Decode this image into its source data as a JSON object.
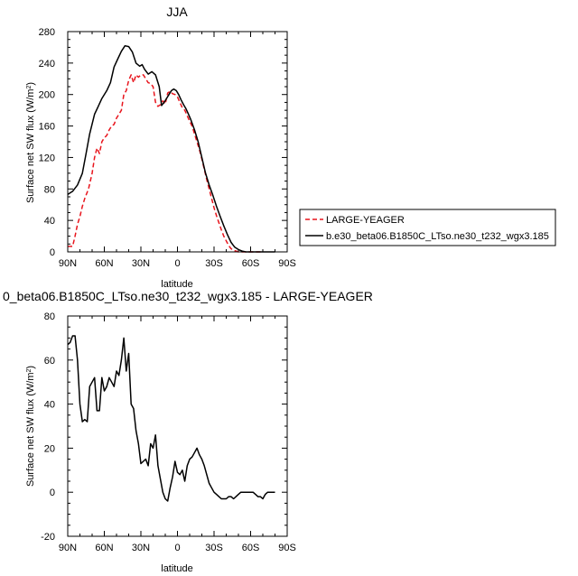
{
  "chart_data": [
    {
      "type": "line",
      "title": "JJA",
      "xlabel": "latitude",
      "ylabel": "Surface net SW flux (W/m²)",
      "xlim": [
        -90,
        90
      ],
      "ylim": [
        0,
        280
      ],
      "x_ticks": [
        -90,
        -60,
        -30,
        0,
        30,
        60,
        90
      ],
      "x_tick_labels": [
        "90N",
        "60N",
        "30N",
        "0",
        "30S",
        "60S",
        "90S"
      ],
      "y_ticks": [
        0,
        40,
        80,
        120,
        160,
        200,
        240,
        280
      ],
      "x_direction": "90N on the left, 90S on the right",
      "legend_position": "right of the plot",
      "series": [
        {
          "name": "LARGE-YEAGER",
          "color": "#e8141c",
          "dash": "dashed",
          "x": [
            -90,
            -86,
            -84,
            -82,
            -80,
            -78,
            -76,
            -73,
            -70,
            -68,
            -66,
            -64,
            -62,
            -60,
            -58,
            -56,
            -54,
            -52,
            -50,
            -48,
            -46,
            -44,
            -42,
            -40,
            -38,
            -36,
            -34,
            -32,
            -30,
            -28,
            -26,
            -24,
            -22,
            -20,
            -18,
            -16,
            -14,
            -12,
            -10,
            -8,
            -6,
            -4,
            -2,
            0,
            2,
            4,
            6,
            8,
            10,
            12,
            14,
            16,
            18,
            20,
            22,
            24,
            26,
            28,
            30,
            32,
            34,
            36,
            38,
            40,
            42,
            44,
            46,
            48,
            50,
            52,
            54,
            56,
            58,
            60,
            62,
            64,
            66,
            68,
            70
          ],
          "values": [
            7,
            7,
            20,
            35,
            45,
            58,
            68,
            80,
            100,
            120,
            132,
            125,
            140,
            145,
            148,
            155,
            160,
            162,
            170,
            175,
            180,
            200,
            205,
            218,
            225,
            215,
            225,
            222,
            225,
            225,
            220,
            215,
            214,
            210,
            190,
            185,
            187,
            192,
            188,
            202,
            204,
            201,
            200,
            197,
            190,
            183,
            180,
            173,
            166,
            160,
            150,
            140,
            130,
            118,
            105,
            92,
            80,
            68,
            56,
            46,
            37,
            28,
            20,
            14,
            8,
            4,
            2,
            1,
            0,
            0,
            0,
            0,
            0,
            0,
            0,
            0,
            0,
            0,
            0
          ]
        },
        {
          "name": "b.e30_beta06.B1850C_LTso.ne30_t232_wgx3.185",
          "color": "#000000",
          "dash": "solid",
          "x": [
            -90,
            -86,
            -82,
            -78,
            -75,
            -72,
            -68,
            -65,
            -62,
            -58,
            -55,
            -52,
            -49,
            -46,
            -43,
            -40,
            -37,
            -34,
            -31,
            -29,
            -27,
            -24,
            -21,
            -18,
            -15,
            -13,
            -11,
            -9,
            -7,
            -5,
            -3,
            -1,
            1,
            3,
            5,
            7,
            9,
            11,
            14,
            17,
            20,
            23,
            26,
            29,
            32,
            35,
            38,
            41,
            44,
            47,
            50,
            53,
            56,
            59,
            62,
            65,
            68,
            72,
            76,
            80
          ],
          "values": [
            73,
            77,
            85,
            100,
            125,
            150,
            175,
            185,
            195,
            205,
            215,
            235,
            245,
            255,
            262,
            261,
            254,
            240,
            236,
            238,
            232,
            226,
            229,
            225,
            210,
            186,
            190,
            195,
            200,
            205,
            207,
            205,
            200,
            193,
            187,
            182,
            175,
            168,
            155,
            140,
            120,
            100,
            85,
            72,
            58,
            45,
            33,
            22,
            12,
            6,
            3,
            1,
            0,
            0,
            0,
            0,
            0,
            0,
            0,
            0
          ]
        }
      ]
    },
    {
      "type": "line",
      "title": "0_beta06.B1850C_LTso.ne30_t232_wgx3.185 - LARGE-YEAGER",
      "xlabel": "latitude",
      "ylabel": "Surface net SW flux (W/m²)",
      "xlim": [
        -90,
        90
      ],
      "ylim": [
        -20,
        80
      ],
      "x_ticks": [
        -90,
        -60,
        -30,
        0,
        30,
        60,
        90
      ],
      "x_tick_labels": [
        "90N",
        "60N",
        "30N",
        "0",
        "30S",
        "60S",
        "90S"
      ],
      "y_ticks": [
        -20,
        0,
        20,
        40,
        60,
        80
      ],
      "series": [
        {
          "color": "#000000",
          "dash": "solid",
          "x": [
            -90,
            -88,
            -86,
            -84,
            -82,
            -80,
            -78,
            -76,
            -74,
            -72,
            -70,
            -68,
            -66,
            -64,
            -62,
            -60,
            -58,
            -56,
            -54,
            -52,
            -50,
            -48,
            -46,
            -44,
            -42,
            -40,
            -38,
            -36,
            -34,
            -32,
            -30,
            -28,
            -26,
            -24,
            -22,
            -20,
            -18,
            -16,
            -14,
            -12,
            -10,
            -8,
            -6,
            -4,
            -2,
            0,
            2,
            4,
            6,
            8,
            10,
            12,
            14,
            16,
            18,
            20,
            22,
            24,
            26,
            28,
            30,
            32,
            34,
            36,
            38,
            40,
            42,
            44,
            46,
            48,
            50,
            52,
            54,
            56,
            58,
            60,
            62,
            64,
            66,
            68,
            70,
            72,
            74,
            76,
            78,
            80
          ],
          "values": [
            67,
            68,
            71,
            71,
            60,
            40,
            32,
            33,
            32,
            48,
            50,
            52,
            37,
            37,
            52,
            46,
            48,
            52,
            50,
            48,
            55,
            53,
            60,
            70,
            55,
            63,
            40,
            38,
            28,
            22,
            13,
            14,
            15,
            12,
            22,
            20,
            26,
            12,
            6,
            0,
            -3,
            -4,
            2,
            7,
            14,
            9,
            8,
            10,
            5,
            12,
            15,
            16,
            18,
            20,
            17,
            15,
            12,
            8,
            4,
            2,
            0,
            -1,
            -2,
            -3,
            -3,
            -3,
            -2,
            -2,
            -3,
            -2,
            -1,
            0,
            0,
            0,
            0,
            0,
            0,
            -1,
            -2,
            -2,
            -3,
            -1,
            0,
            0,
            0,
            0
          ]
        }
      ]
    }
  ]
}
